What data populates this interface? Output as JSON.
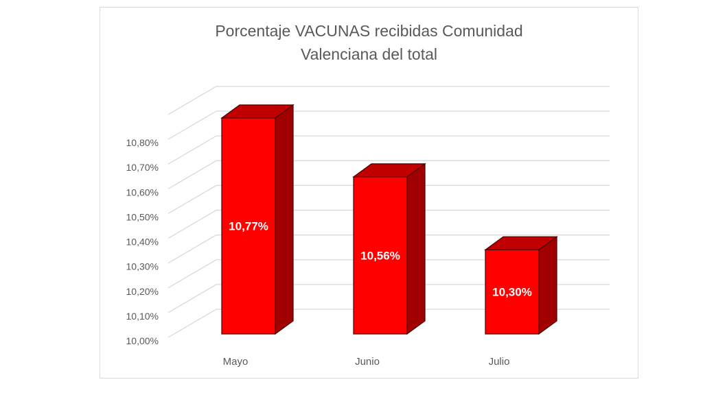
{
  "chart_data": {
    "type": "bar",
    "style": "3d-column",
    "title": "Porcentaje VACUNAS recibidas Comunidad Valenciana del total",
    "title_lines": [
      "Porcentaje VACUNAS recibidas Comunidad",
      "Valenciana del total"
    ],
    "categories": [
      "Mayo",
      "Junio",
      "Julio"
    ],
    "series": [
      {
        "name": "Porcentaje",
        "values": [
          10.77,
          10.56,
          10.3
        ],
        "color": "#ff0000"
      }
    ],
    "data_labels": [
      "10,77%",
      "10,56%",
      "10,30%"
    ],
    "xlabel": "",
    "ylabel": "",
    "ylim": [
      10.0,
      10.9
    ],
    "yticks": [
      10.0,
      10.1,
      10.2,
      10.3,
      10.4,
      10.5,
      10.6,
      10.7,
      10.8
    ],
    "ytick_labels": [
      "10,00%",
      "10,10%",
      "10,20%",
      "10,30%",
      "10,40%",
      "10,50%",
      "10,60%",
      "10,70%",
      "10,80%"
    ],
    "grid": true,
    "legend": "none",
    "colors": {
      "bar_front": "#ff0000",
      "bar_top": "#c00000",
      "bar_side": "#a00000",
      "bar_outline": "#4a0000",
      "grid": "#d9d9d9",
      "text": "#595959",
      "label_text": "#ffffff"
    }
  }
}
